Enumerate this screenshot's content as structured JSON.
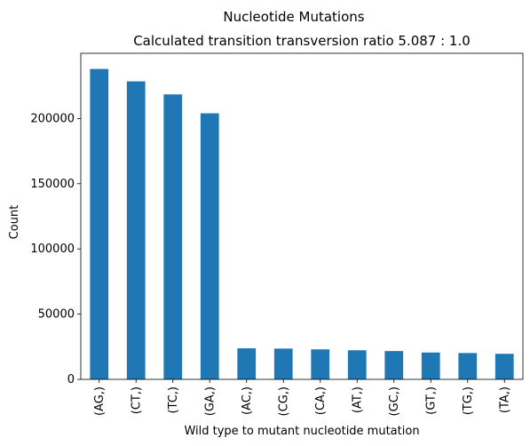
{
  "chart_data": {
    "type": "bar",
    "title": "Nucleotide Mutations",
    "subtitle": "Calculated transition transversion ratio 5.087 : 1.0",
    "xlabel": "Wild type to mutant nucleotide mutation",
    "ylabel": "Count",
    "categories": [
      "(AG,)",
      "(CT,)",
      "(TC,)",
      "(GA,)",
      "(AC,)",
      "(CG,)",
      "(CA,)",
      "(AT,)",
      "(GC,)",
      "(GT,)",
      "(TG,)",
      "(TA,)"
    ],
    "values": [
      238000,
      228500,
      218500,
      204000,
      23800,
      23600,
      23000,
      22300,
      21700,
      20600,
      20200,
      19600
    ],
    "ylim": [
      0,
      250000
    ],
    "yticks": [
      0,
      50000,
      100000,
      150000,
      200000
    ],
    "bar_color": "#1f77b4",
    "grid": false,
    "legend": "none"
  }
}
